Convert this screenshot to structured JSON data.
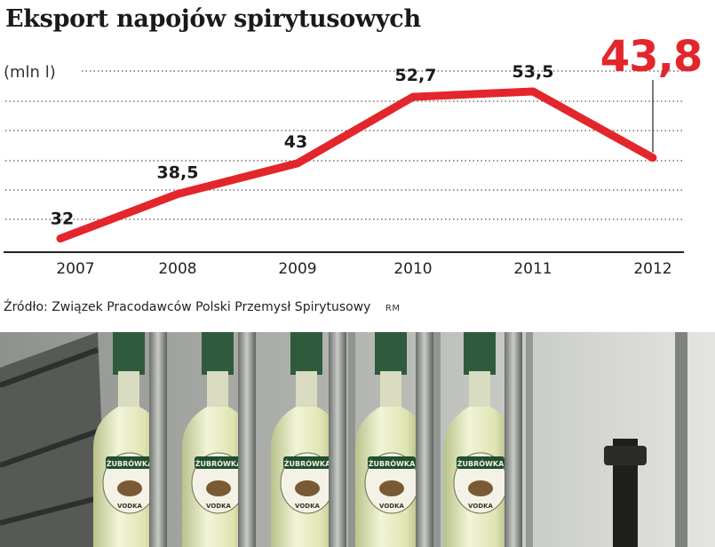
{
  "chart_data": {
    "type": "line",
    "title": "Eksport napojów spirytusowych",
    "ylabel": "(mln l)",
    "categories": [
      "2007",
      "2008",
      "2009",
      "2010",
      "2011",
      "2012"
    ],
    "values": [
      32,
      38.5,
      43,
      52.7,
      53.5,
      43.8
    ],
    "value_labels": [
      "32",
      "38,5",
      "43",
      "52,7",
      "53,5",
      "43,8"
    ],
    "highlight_index": 5,
    "ylim": [
      30,
      57
    ],
    "grid": true,
    "line_color": "#e3262b",
    "highlight_color": "#e3262b"
  },
  "source": {
    "text": "Źródło: Związek Pracodawców Polski Przemysł Spirytusowy",
    "credit": "RM"
  },
  "photo": {
    "bottle_label": "ŻUBRÓWKA",
    "bottle_sublabel": "VODKA"
  }
}
